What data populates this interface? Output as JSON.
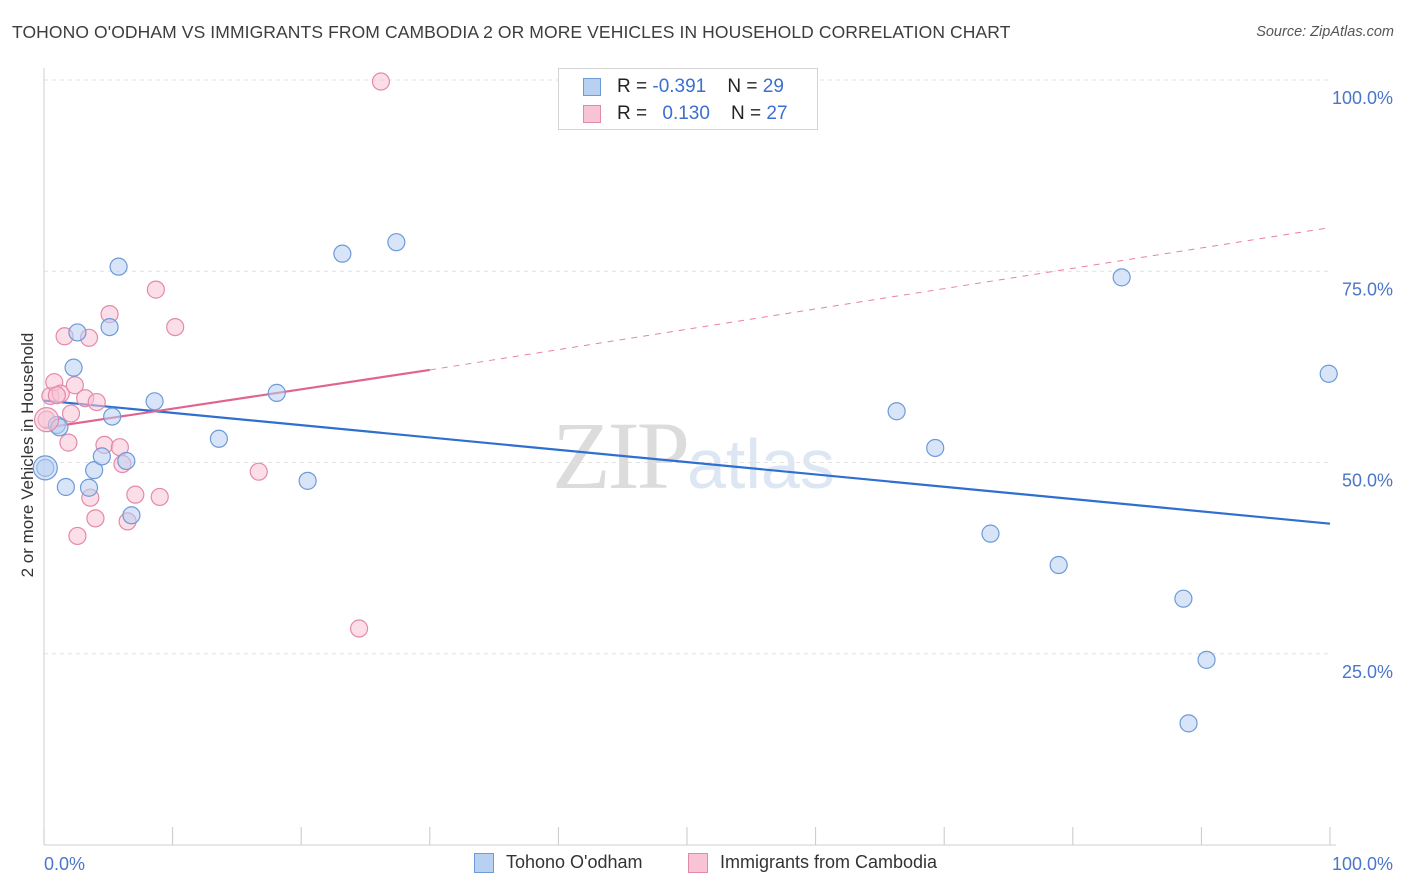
{
  "title": "TOHONO O'ODHAM VS IMMIGRANTS FROM CAMBODIA 2 OR MORE VEHICLES IN HOUSEHOLD CORRELATION CHART",
  "source": "Source: ZipAtlas.com",
  "watermark": {
    "zip": "ZIP",
    "atlas": "atlas"
  },
  "stats": {
    "row1": {
      "r_label": "R = ",
      "r_value": "-0.391",
      "n_label": "N = ",
      "n_value": "29"
    },
    "row2": {
      "r_label": "R = ",
      "r_value": "0.130",
      "n_label": "N = ",
      "n_value": "27"
    }
  },
  "colors": {
    "blue_fill": "#b8d0f2",
    "blue_stroke": "#6e9ad8",
    "blue_line": "#2e6fcf",
    "pink_fill": "#f8c3d4",
    "pink_stroke": "#e48aa9",
    "pink_line": "#e0648f",
    "grid": "#e2e2e2",
    "tick_text": "#4a76c9"
  },
  "chart_data": {
    "type": "scatter",
    "title": "TOHONO O'ODHAM VS IMMIGRANTS FROM CAMBODIA 2 OR MORE VEHICLES IN HOUSEHOLD CORRELATION CHART",
    "xlabel": "",
    "ylabel": "2 or more Vehicles in Household",
    "xlim": [
      0,
      100
    ],
    "ylim": [
      0,
      100
    ],
    "x_tick_labels": [
      "0.0%",
      "100.0%"
    ],
    "y_ticks": [
      25,
      50,
      75,
      100
    ],
    "y_tick_labels": [
      "25.0%",
      "50.0%",
      "75.0%",
      "100.0%"
    ],
    "grid": true,
    "legend_position": "bottom-center",
    "series": [
      {
        "name": "Tohono O'odham",
        "color": "#6e9ad8",
        "r": -0.391,
        "n": 29,
        "trend": {
          "x0": 0,
          "y0": 58.1,
          "x1": 100,
          "y1": 42.0,
          "extrapolated": false
        },
        "points": [
          [
            0.1,
            49.3
          ],
          [
            1.0,
            54.9
          ],
          [
            1.7,
            46.8
          ],
          [
            2.3,
            62.4
          ],
          [
            2.6,
            67.0
          ],
          [
            3.5,
            46.7
          ],
          [
            3.9,
            49.0
          ],
          [
            4.5,
            50.8
          ],
          [
            5.1,
            67.7
          ],
          [
            5.3,
            56.0
          ],
          [
            5.8,
            75.6
          ],
          [
            6.4,
            50.2
          ],
          [
            6.8,
            43.1
          ],
          [
            8.6,
            58.0
          ],
          [
            13.6,
            53.1
          ],
          [
            18.1,
            59.1
          ],
          [
            20.5,
            47.6
          ],
          [
            23.2,
            77.3
          ],
          [
            27.4,
            78.8
          ],
          [
            66.3,
            56.7
          ],
          [
            69.3,
            51.9
          ],
          [
            73.6,
            40.7
          ],
          [
            78.9,
            36.6
          ],
          [
            83.8,
            74.2
          ],
          [
            88.6,
            32.2
          ],
          [
            90.4,
            24.2
          ],
          [
            89.0,
            15.9
          ],
          [
            99.9,
            61.6
          ],
          [
            1.2,
            54.6
          ]
        ]
      },
      {
        "name": "Immigrants from Cambodia",
        "color": "#e48aa9",
        "r": 0.13,
        "n": 27,
        "trend": {
          "x0": 0,
          "y0": 54.5,
          "x1": 30,
          "y1": 62.1,
          "extrapolate_to_x": 100,
          "extrapolate_to_y": 80.7
        },
        "points": [
          [
            0.2,
            55.6
          ],
          [
            0.5,
            58.7
          ],
          [
            0.8,
            60.5
          ],
          [
            1.3,
            59.0
          ],
          [
            1.6,
            66.5
          ],
          [
            1.9,
            52.6
          ],
          [
            2.1,
            56.4
          ],
          [
            2.4,
            60.1
          ],
          [
            2.6,
            40.4
          ],
          [
            3.2,
            58.4
          ],
          [
            3.5,
            66.3
          ],
          [
            3.6,
            45.4
          ],
          [
            4.0,
            42.7
          ],
          [
            4.1,
            57.9
          ],
          [
            4.7,
            52.3
          ],
          [
            5.1,
            69.4
          ],
          [
            5.9,
            52.0
          ],
          [
            6.1,
            49.8
          ],
          [
            6.5,
            42.3
          ],
          [
            7.1,
            45.8
          ],
          [
            8.7,
            72.6
          ],
          [
            9.0,
            45.5
          ],
          [
            10.2,
            67.7
          ],
          [
            16.7,
            48.8
          ],
          [
            24.5,
            28.3
          ],
          [
            26.2,
            99.8
          ],
          [
            1.0,
            58.8
          ]
        ]
      }
    ]
  },
  "legend": {
    "item1": "Tohono O'odham",
    "item2": "Immigrants from Cambodia"
  }
}
